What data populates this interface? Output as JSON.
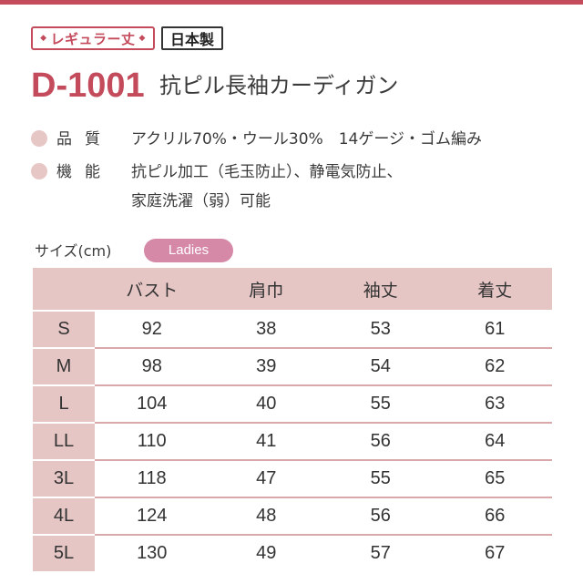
{
  "badges": {
    "regular_label": "レギュラー丈",
    "made_in_label": "日本製"
  },
  "product": {
    "code": "D-1001",
    "name": "抗ピル長袖カーディガン"
  },
  "specs": {
    "material_label": "品質",
    "material_value": "アクリル70%・ウール30%　14ゲージ・ゴム編み",
    "function_label": "機能",
    "function_value_line1": "抗ピル加工（毛玉防止）、静電気防止、",
    "function_value_line2": "家庭洗濯（弱）可能"
  },
  "size_section": {
    "label": "サイズ(cm)",
    "category": "Ladies"
  },
  "size_table": {
    "headers": [
      "",
      "バスト",
      "肩巾",
      "袖丈",
      "着丈"
    ],
    "rows": [
      [
        "S",
        "92",
        "38",
        "53",
        "61"
      ],
      [
        "M",
        "98",
        "39",
        "54",
        "62"
      ],
      [
        "L",
        "104",
        "40",
        "55",
        "63"
      ],
      [
        "LL",
        "110",
        "41",
        "56",
        "64"
      ],
      [
        "3L",
        "118",
        "47",
        "55",
        "65"
      ],
      [
        "4L",
        "124",
        "48",
        "56",
        "66"
      ],
      [
        "5L",
        "130",
        "49",
        "57",
        "67"
      ]
    ]
  },
  "colors": {
    "accent": "#c44b5c",
    "table_tint": "#e6c5c5",
    "pill": "#d688a7"
  }
}
